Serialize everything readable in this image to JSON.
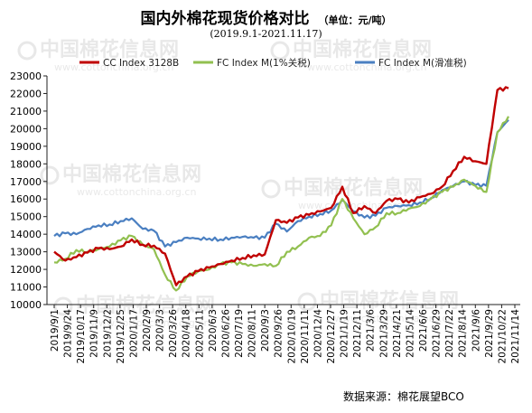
{
  "chart_data": {
    "type": "line",
    "title": "国内外棉花现货价格对比",
    "unit_label": "（单位：元/吨）",
    "subtitle": "(2019.9.1-2021.11.17)",
    "source": "数据来源：棉花展望BCO",
    "xlabel": "",
    "ylabel": "",
    "ylim": [
      10000,
      23000
    ],
    "yticks": [
      10000,
      11000,
      12000,
      13000,
      14000,
      15000,
      16000,
      17000,
      18000,
      19000,
      20000,
      21000,
      22000,
      23000
    ],
    "grid": false,
    "legend_position": "top",
    "x_tick_labels": [
      "2019/9/1",
      "2019/9/24",
      "2019/10/17",
      "2019/11/9",
      "2019/12/2",
      "2019/12/25",
      "2020/1/17",
      "2020/2/9",
      "2020/3/3",
      "2020/3/26",
      "2020/4/18",
      "2020/5/11",
      "2020/6/3",
      "2020/6/26",
      "2020/7/19",
      "2020/8/11",
      "2020/9/3",
      "2020/9/26",
      "2020/10/19",
      "2020/11/11",
      "2020/12/4",
      "2020/12/27",
      "2021/1/19",
      "2021/2/11",
      "2021/3/6",
      "2021/3/29",
      "2021/4/21",
      "2021/5/14",
      "2021/6/6",
      "2021/6/29",
      "2021/7/22",
      "2021/8/14",
      "2021/9/6",
      "2021/9/29",
      "2021/10/22",
      "2021/11/14"
    ],
    "series": [
      {
        "name": "CC Index 3128B",
        "color": "#c00000",
        "values": [
          13000,
          12500,
          12700,
          12950,
          13200,
          13150,
          13300,
          13700,
          13400,
          13350,
          12900,
          11100,
          11600,
          11900,
          12100,
          12300,
          12500,
          12650,
          12800,
          12850,
          14800,
          14650,
          14950,
          15100,
          15300,
          15500,
          16700,
          15200,
          15600,
          15200,
          15900,
          16000,
          15800,
          16100,
          16300,
          16700,
          17600,
          18400,
          18150,
          18000,
          22200,
          22300
        ]
      },
      {
        "name": "FC Index M(1%关税)",
        "color": "#92c050",
        "values": [
          12400,
          12600,
          13100,
          13000,
          13150,
          13300,
          13650,
          13900,
          13400,
          13150,
          11700,
          10800,
          11600,
          11900,
          12000,
          12300,
          12400,
          12300,
          12200,
          12300,
          12200,
          13000,
          13300,
          13800,
          13900,
          14500,
          16000,
          14900,
          14000,
          14400,
          15200,
          15200,
          15450,
          15600,
          16000,
          16400,
          16700,
          17100,
          16750,
          16400,
          19800,
          20700
        ]
      },
      {
        "name": "FC Index M(滑准税)",
        "color": "#4a7fc1",
        "values": [
          13900,
          14050,
          14000,
          14300,
          14500,
          14550,
          14750,
          14900,
          14300,
          14200,
          13300,
          13550,
          13800,
          13750,
          13750,
          13700,
          13800,
          13850,
          13800,
          13800,
          14600,
          14150,
          14750,
          15000,
          15150,
          15350,
          15950,
          15300,
          14950,
          15050,
          15500,
          15600,
          15650,
          15800,
          16050,
          16500,
          16750,
          17000,
          16800,
          16750,
          19800,
          20500
        ]
      }
    ]
  },
  "watermark": {
    "text": "中国棉花信息网",
    "url_text": "www.cottonchina.org.cn"
  }
}
